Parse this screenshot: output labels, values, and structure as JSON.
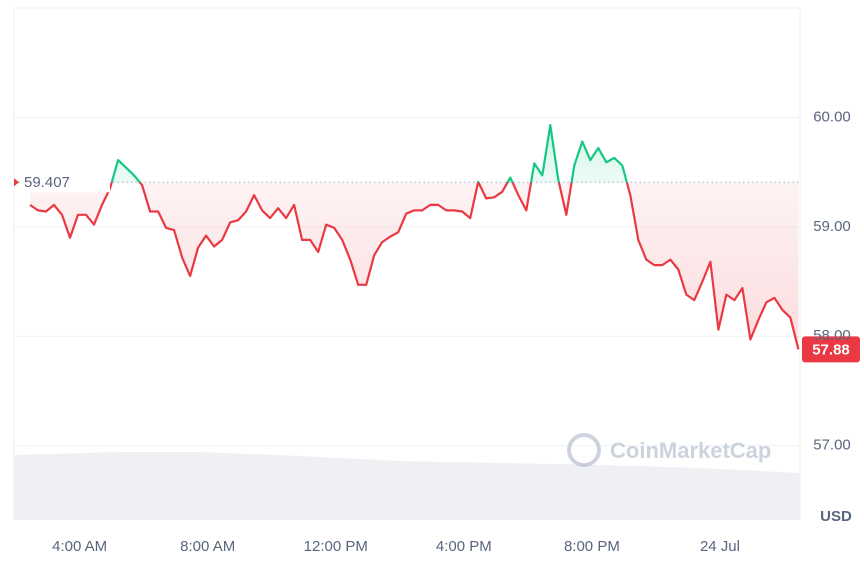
{
  "chart_data": {
    "type": "line",
    "baseline": 59.407,
    "watermark": "CoinMarketCap",
    "y_axis_label": "USD",
    "up_color": "#16c784",
    "down_color": "#ea3943",
    "grid": true,
    "xlim": [
      1.95,
      26.5
    ],
    "ylim": [
      56.32,
      61.0
    ],
    "xticks": [
      {
        "value": 4,
        "label": "4:00 AM"
      },
      {
        "value": 8,
        "label": "8:00 AM"
      },
      {
        "value": 12,
        "label": "12:00 PM"
      },
      {
        "value": 16,
        "label": "4:00 PM"
      },
      {
        "value": 20,
        "label": "8:00 PM"
      },
      {
        "value": 24,
        "label": "24 Jul"
      }
    ],
    "yticks": [
      {
        "value": 57,
        "label": "57.00"
      },
      {
        "value": 58,
        "label": "58.00"
      },
      {
        "value": 59,
        "label": "59.00"
      },
      {
        "value": 60,
        "label": "60.00"
      }
    ],
    "x": [
      2.45,
      2.7,
      2.95,
      3.2,
      3.45,
      3.7,
      3.95,
      4.2,
      4.45,
      4.7,
      4.95,
      5.2,
      5.45,
      5.7,
      5.95,
      6.2,
      6.45,
      6.7,
      6.95,
      7.2,
      7.45,
      7.7,
      7.95,
      8.2,
      8.45,
      8.7,
      8.95,
      9.2,
      9.45,
      9.7,
      9.95,
      10.2,
      10.45,
      10.7,
      10.95,
      11.2,
      11.45,
      11.7,
      11.95,
      12.2,
      12.45,
      12.7,
      12.95,
      13.2,
      13.45,
      13.7,
      13.95,
      14.2,
      14.45,
      14.7,
      14.95,
      15.2,
      15.45,
      15.7,
      15.95,
      16.2,
      16.45,
      16.7,
      16.95,
      17.2,
      17.45,
      17.7,
      17.95,
      18.2,
      18.45,
      18.7,
      18.95,
      19.2,
      19.45,
      19.7,
      19.95,
      20.2,
      20.45,
      20.7,
      20.95,
      21.2,
      21.45,
      21.7,
      21.95,
      22.2,
      22.45,
      22.7,
      22.95,
      23.2,
      23.45,
      23.7,
      23.95,
      24.2,
      24.45,
      24.7,
      24.95,
      25.2,
      25.45,
      25.7,
      25.95,
      26.2,
      26.45
    ],
    "values": [
      59.2,
      59.15,
      59.14,
      59.2,
      59.11,
      58.9,
      59.11,
      59.11,
      59.02,
      59.2,
      59.35,
      59.61,
      59.54,
      59.47,
      59.38,
      59.14,
      59.14,
      58.99,
      58.97,
      58.72,
      58.55,
      58.81,
      58.92,
      58.82,
      58.88,
      59.04,
      59.06,
      59.14,
      59.29,
      59.15,
      59.08,
      59.17,
      59.08,
      59.2,
      58.88,
      58.88,
      58.77,
      59.02,
      58.99,
      58.88,
      58.7,
      58.47,
      58.47,
      58.74,
      58.86,
      58.91,
      58.95,
      59.12,
      59.15,
      59.15,
      59.2,
      59.2,
      59.15,
      59.15,
      59.14,
      59.08,
      59.41,
      59.26,
      59.27,
      59.32,
      59.45,
      59.29,
      59.15,
      59.58,
      59.47,
      59.93,
      59.43,
      59.11,
      59.56,
      59.78,
      59.61,
      59.72,
      59.59,
      59.63,
      59.56,
      59.29,
      58.88,
      58.7,
      58.65,
      58.65,
      58.7,
      58.61,
      58.38,
      58.33,
      58.5,
      58.68,
      58.06,
      58.38,
      58.33,
      58.44,
      57.97,
      58.15,
      58.31,
      58.35,
      58.24,
      58.17,
      57.88
    ]
  }
}
